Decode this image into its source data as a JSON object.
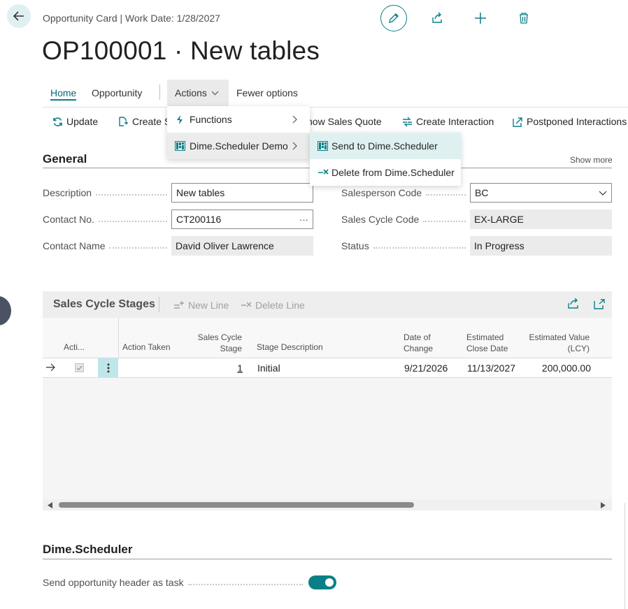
{
  "header": {
    "caption": "Opportunity Card | Work Date: 1/28/2027",
    "title": "OP100001 · New tables"
  },
  "nav": {
    "tabs": [
      "Home",
      "Opportunity"
    ],
    "actions_label": "Actions",
    "fewer_options": "Fewer options"
  },
  "actionbar": {
    "update": "Update",
    "create_prefix": "Create S",
    "show_sales_quote": "how Sales Quote",
    "create_interaction": "Create Interaction",
    "postponed_interactions": "Postponed Interactions"
  },
  "actions_menu": {
    "items": [
      "Functions",
      "Dime.Scheduler Demo"
    ]
  },
  "dime_submenu": {
    "items": [
      "Send to Dime.Scheduler",
      "Delete from Dime.Scheduler"
    ]
  },
  "general": {
    "title": "General",
    "show_more": "Show more",
    "description_label": "Description",
    "description_value": "New tables",
    "contact_no_label": "Contact No.",
    "contact_no_value": "CT200116",
    "contact_no_more": "···",
    "contact_name_label": "Contact Name",
    "contact_name_value": "David Oliver Lawrence",
    "salesperson_label": "Salesperson Code",
    "salesperson_value": "BC",
    "sales_cycle_label": "Sales Cycle Code",
    "sales_cycle_value": "EX-LARGE",
    "status_label": "Status",
    "status_value": "In Progress"
  },
  "stages": {
    "title": "Sales Cycle Stages",
    "new_line": "New Line",
    "delete_line": "Delete Line",
    "columns": {
      "active": "Acti...",
      "action_taken": "Action Taken",
      "stage_1": "Sales Cycle",
      "stage_2": "Stage",
      "stage_description": "Stage Description",
      "date_1": "Date of",
      "date_2": "Change",
      "close_1": "Estimated",
      "close_2": "Close Date",
      "value_1": "Estimated Value",
      "value_2": "(LCY)"
    },
    "rows": [
      {
        "stage": "1",
        "stage_description": "Initial",
        "date_of_change": "9/21/2026",
        "estimated_close_date": "11/13/2027",
        "estimated_value": "200,000.00",
        "active": true
      }
    ]
  },
  "dime_scheduler": {
    "title": "Dime.Scheduler",
    "send_header_label": "Send opportunity header as task",
    "send_header_value": true
  },
  "colors": {
    "accent": "#0b7f87",
    "accent_light": "#dff0f1"
  }
}
